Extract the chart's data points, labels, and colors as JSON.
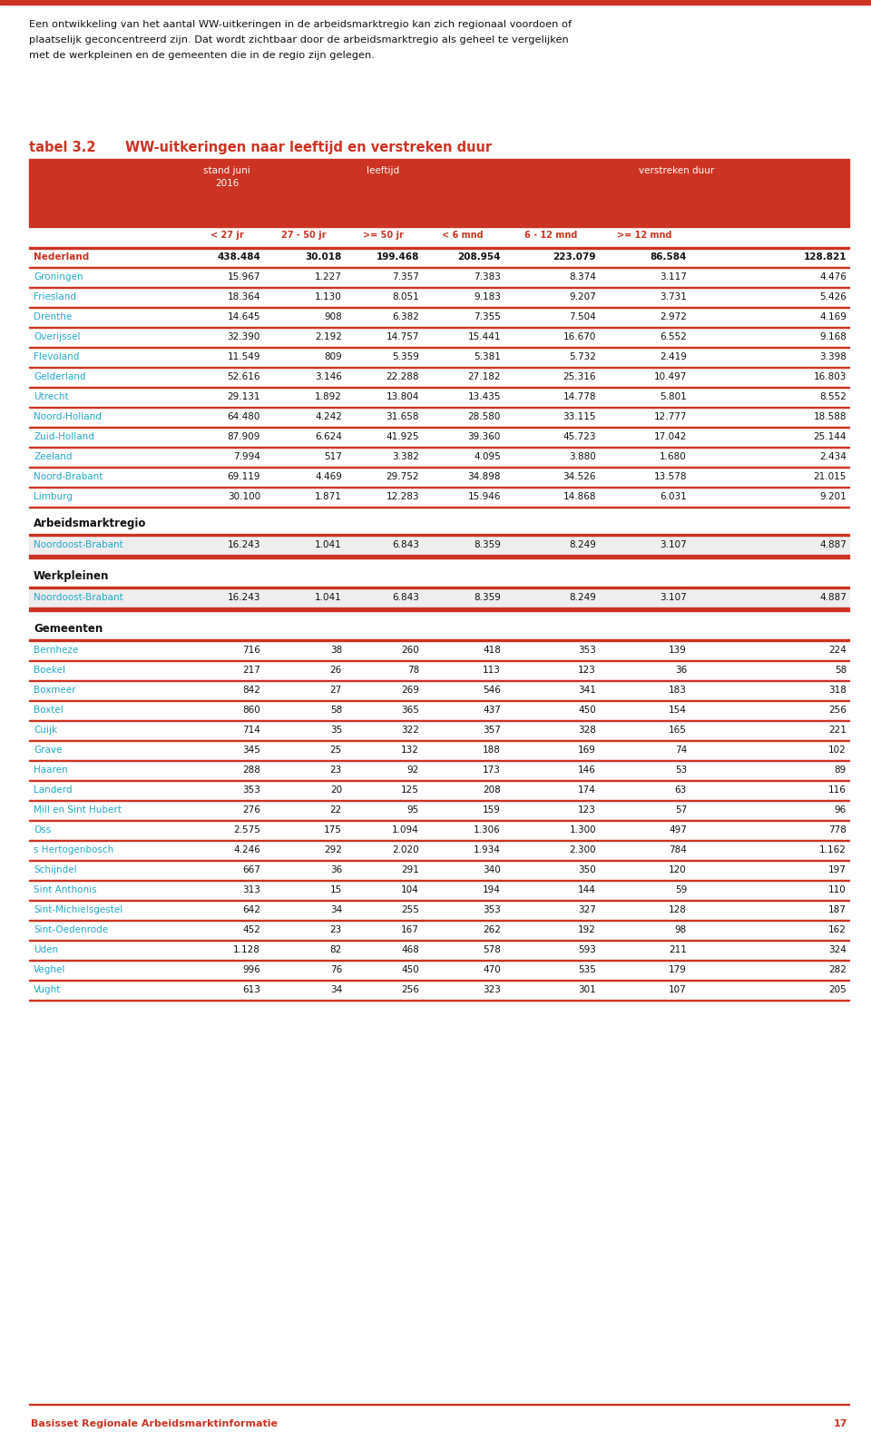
{
  "intro_text_lines": [
    "Een ontwikkeling van het aantal WW-uitkeringen in de arbeidsmarktregio kan zich regionaal voordoen of",
    "plaatselijk geconcentreerd zijn. Dat wordt zichtbaar door de arbeidsmarktregio als geheel te vergelijken",
    "met de werkpleinen en de gemeenten die in de regio zijn gelegen."
  ],
  "table_label": "tabel 3.2",
  "table_title": "WW-uitkeringen naar leeftijd en verstreken duur",
  "col_header_bg": "#cc3322",
  "col_header_text": "#ffffff",
  "col_subheader_text": "#cc3322",
  "nederland_color": "#cc3322",
  "province_color": "#22aacc",
  "gemeente_color": "#22aacc",
  "section_header_color": "#222222",
  "highlight_bg": "#eeeeee",
  "row_line_color": "#cc3322",
  "footer_text": "Basisset Regionale Arbeidsmarktinformatie",
  "footer_page": "17",
  "subheaders": [
    "< 27 jr",
    "27 - 50 jr",
    ">= 50 jr",
    "< 6 mnd",
    "6 - 12 mnd",
    ">= 12 mnd"
  ],
  "nederland_row": [
    "Nederland",
    "438.484",
    "30.018",
    "199.468",
    "208.954",
    "223.079",
    "86.584",
    "128.821"
  ],
  "provinces": [
    [
      "Groningen",
      "15.967",
      "1.227",
      "7.357",
      "7.383",
      "8.374",
      "3.117",
      "4.476"
    ],
    [
      "Friesland",
      "18.364",
      "1.130",
      "8.051",
      "9.183",
      "9.207",
      "3.731",
      "5.426"
    ],
    [
      "Drenthe",
      "14.645",
      "908",
      "6.382",
      "7.355",
      "7.504",
      "2.972",
      "4.169"
    ],
    [
      "Overijssel",
      "32.390",
      "2.192",
      "14.757",
      "15.441",
      "16.670",
      "6.552",
      "9.168"
    ],
    [
      "Flevoland",
      "11.549",
      "809",
      "5.359",
      "5.381",
      "5.732",
      "2.419",
      "3.398"
    ],
    [
      "Gelderland",
      "52.616",
      "3.146",
      "22.288",
      "27.182",
      "25.316",
      "10.497",
      "16.803"
    ],
    [
      "Utrecht",
      "29.131",
      "1.892",
      "13.804",
      "13.435",
      "14.778",
      "5.801",
      "8.552"
    ],
    [
      "Noord-Holland",
      "64.480",
      "4.242",
      "31.658",
      "28.580",
      "33.115",
      "12.777",
      "18.588"
    ],
    [
      "Zuid-Holland",
      "87.909",
      "6.624",
      "41.925",
      "39.360",
      "45.723",
      "17.042",
      "25.144"
    ],
    [
      "Zeeland",
      "7.994",
      "517",
      "3.382",
      "4.095",
      "3.880",
      "1.680",
      "2.434"
    ],
    [
      "Noord-Brabant",
      "69.119",
      "4.469",
      "29.752",
      "34.898",
      "34.526",
      "13.578",
      "21.015"
    ],
    [
      "Limburg",
      "30.100",
      "1.871",
      "12.283",
      "15.946",
      "14.868",
      "6.031",
      "9.201"
    ]
  ],
  "arbeidsmarkt_rows": [
    [
      "Noordoost-Brabant",
      "16.243",
      "1.041",
      "6.843",
      "8.359",
      "8.249",
      "3.107",
      "4.887"
    ]
  ],
  "werkpleinen_rows": [
    [
      "Noordoost-Brabant",
      "16.243",
      "1.041",
      "6.843",
      "8.359",
      "8.249",
      "3.107",
      "4.887"
    ]
  ],
  "gemeenten_rows": [
    [
      "Bernheze",
      "716",
      "38",
      "260",
      "418",
      "353",
      "139",
      "224"
    ],
    [
      "Boekel",
      "217",
      "26",
      "78",
      "113",
      "123",
      "36",
      "58"
    ],
    [
      "Boxmeer",
      "842",
      "27",
      "269",
      "546",
      "341",
      "183",
      "318"
    ],
    [
      "Boxtel",
      "860",
      "58",
      "365",
      "437",
      "450",
      "154",
      "256"
    ],
    [
      "Cuijk",
      "714",
      "35",
      "322",
      "357",
      "328",
      "165",
      "221"
    ],
    [
      "Grave",
      "345",
      "25",
      "132",
      "188",
      "169",
      "74",
      "102"
    ],
    [
      "Haaren",
      "288",
      "23",
      "92",
      "173",
      "146",
      "53",
      "89"
    ],
    [
      "Landerd",
      "353",
      "20",
      "125",
      "208",
      "174",
      "63",
      "116"
    ],
    [
      "Mill en Sint Hubert",
      "276",
      "22",
      "95",
      "159",
      "123",
      "57",
      "96"
    ],
    [
      "Oss",
      "2.575",
      "175",
      "1.094",
      "1.306",
      "1.300",
      "497",
      "778"
    ],
    [
      "s Hertogenbosch",
      "4.246",
      "292",
      "2.020",
      "1.934",
      "2.300",
      "784",
      "1.162"
    ],
    [
      "Schijndel",
      "667",
      "36",
      "291",
      "340",
      "350",
      "120",
      "197"
    ],
    [
      "Sint Anthonis",
      "313",
      "15",
      "104",
      "194",
      "144",
      "59",
      "110"
    ],
    [
      "Sint-Michielsgestel",
      "642",
      "34",
      "255",
      "353",
      "327",
      "128",
      "187"
    ],
    [
      "Sint-Oedenrode",
      "452",
      "23",
      "167",
      "262",
      "192",
      "98",
      "162"
    ],
    [
      "Uden",
      "1.128",
      "82",
      "468",
      "578",
      "593",
      "211",
      "324"
    ],
    [
      "Veghel",
      "996",
      "76",
      "450",
      "470",
      "535",
      "179",
      "282"
    ],
    [
      "Vught",
      "613",
      "34",
      "256",
      "323",
      "301",
      "107",
      "205"
    ]
  ]
}
